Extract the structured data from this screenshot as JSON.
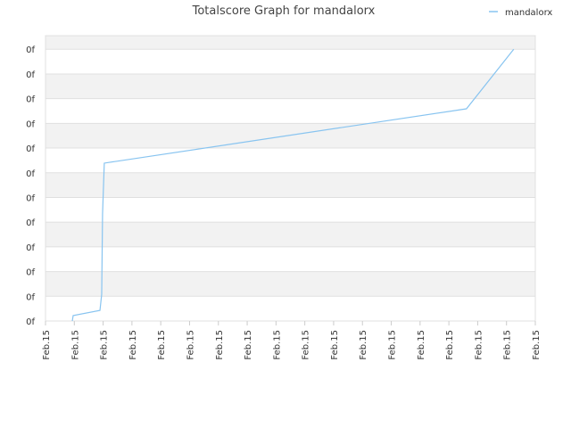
{
  "chart_data": {
    "type": "line",
    "title": "Totalscore Graph for mandalorx",
    "x": [
      0.93,
      0.96,
      1.89,
      1.95,
      1.98,
      2.04,
      14.61,
      16.25
    ],
    "series": [
      {
        "name": "mandalorx",
        "color": "#88c4f0",
        "values": [
          0,
          0.22,
          0.43,
          1.08,
          4.33,
          6.39,
          8.59,
          11.0
        ]
      }
    ],
    "xlim": [
      0,
      17
    ],
    "ylim": [
      0,
      11.55
    ],
    "xticks": [
      {
        "value": 0,
        "label": "Feb.15"
      },
      {
        "value": 1,
        "label": "Feb.15"
      },
      {
        "value": 2,
        "label": "Feb.15"
      },
      {
        "value": 3,
        "label": "Feb.15"
      },
      {
        "value": 4,
        "label": "Feb.15"
      },
      {
        "value": 5,
        "label": "Feb.15"
      },
      {
        "value": 6,
        "label": "Feb.15"
      },
      {
        "value": 7,
        "label": "Feb.15"
      },
      {
        "value": 8,
        "label": "Feb.15"
      },
      {
        "value": 9,
        "label": "Feb.15"
      },
      {
        "value": 10,
        "label": "Feb.15"
      },
      {
        "value": 11,
        "label": "Feb.15"
      },
      {
        "value": 12,
        "label": "Feb.15"
      },
      {
        "value": 13,
        "label": "Feb.15"
      },
      {
        "value": 14,
        "label": "Feb.15"
      },
      {
        "value": 15,
        "label": "Feb.15"
      },
      {
        "value": 16,
        "label": "Feb.15"
      },
      {
        "value": 17,
        "label": "Feb.15"
      }
    ],
    "yticks": [
      {
        "value": 0,
        "label": "0f"
      },
      {
        "value": 1,
        "label": "0f"
      },
      {
        "value": 2,
        "label": "0f"
      },
      {
        "value": 3,
        "label": "0f"
      },
      {
        "value": 4,
        "label": "0f"
      },
      {
        "value": 5,
        "label": "0f"
      },
      {
        "value": 6,
        "label": "0f"
      },
      {
        "value": 7,
        "label": "0f"
      },
      {
        "value": 8,
        "label": "0f"
      },
      {
        "value": 9,
        "label": "0f"
      },
      {
        "value": 10,
        "label": "0f"
      },
      {
        "value": 11,
        "label": "0f"
      }
    ],
    "grid": true,
    "legend": "top-right"
  }
}
